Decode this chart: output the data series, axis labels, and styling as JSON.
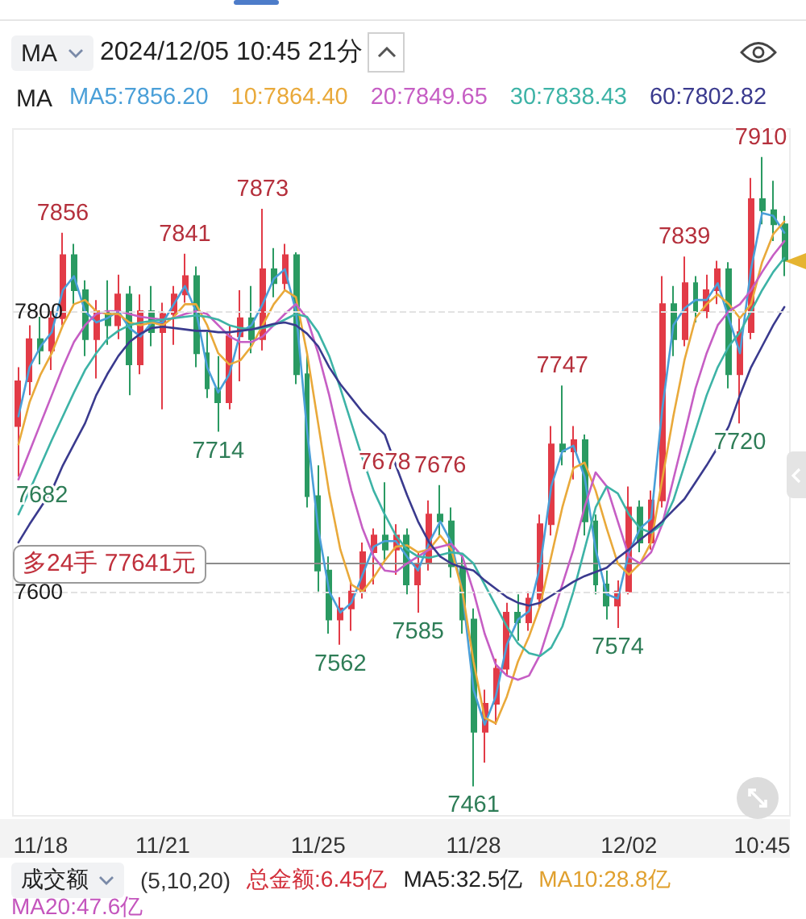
{
  "chart_data": {
    "type": "candlestick",
    "title": "2024/12/05 10:45 21分",
    "legend_title": "MA",
    "categories": [
      null,
      null,
      "11/18",
      null,
      null,
      null,
      null,
      null,
      null,
      null,
      null,
      null,
      null,
      "11/21",
      null,
      null,
      null,
      null,
      null,
      null,
      null,
      null,
      null,
      null,
      null,
      null,
      null,
      "11/25",
      null,
      null,
      null,
      null,
      null,
      null,
      null,
      null,
      null,
      null,
      null,
      null,
      null,
      "11/28",
      null,
      null,
      null,
      null,
      null,
      null,
      null,
      null,
      null,
      null,
      null,
      null,
      null,
      "12/02",
      null,
      null,
      null,
      null,
      null,
      null,
      null,
      null,
      null,
      null,
      null,
      "10:45",
      null,
      null
    ],
    "series": [
      {
        "type": "candlestick",
        "ohlc": [
          [
            7718,
            7760,
            7682,
            7750
          ],
          [
            7750,
            7790,
            7740,
            7780
          ],
          [
            7780,
            7796,
            7762,
            7772
          ],
          [
            7772,
            7800,
            7758,
            7795
          ],
          [
            7795,
            7856,
            7790,
            7840
          ],
          [
            7840,
            7848,
            7805,
            7815
          ],
          [
            7815,
            7822,
            7768,
            7780
          ],
          [
            7780,
            7808,
            7752,
            7800
          ],
          [
            7800,
            7822,
            7776,
            7790
          ],
          [
            7790,
            7826,
            7780,
            7812
          ],
          [
            7812,
            7818,
            7740,
            7762
          ],
          [
            7762,
            7812,
            7755,
            7800
          ],
          [
            7800,
            7818,
            7775,
            7785
          ],
          [
            7785,
            7806,
            7730,
            7798
          ],
          [
            7798,
            7818,
            7776,
            7812
          ],
          [
            7812,
            7841,
            7806,
            7825
          ],
          [
            7825,
            7832,
            7760,
            7770
          ],
          [
            7770,
            7785,
            7738,
            7745
          ],
          [
            7745,
            7768,
            7714,
            7735
          ],
          [
            7735,
            7790,
            7730,
            7782
          ],
          [
            7782,
            7815,
            7750,
            7795
          ],
          [
            7795,
            7818,
            7770,
            7780
          ],
          [
            7780,
            7873,
            7772,
            7830
          ],
          [
            7830,
            7845,
            7810,
            7820
          ],
          [
            7820,
            7848,
            7815,
            7840
          ],
          [
            7840,
            7842,
            7748,
            7755
          ],
          [
            7755,
            7770,
            7660,
            7668
          ],
          [
            7668,
            7690,
            7600,
            7615
          ],
          [
            7615,
            7625,
            7570,
            7580
          ],
          [
            7580,
            7596,
            7562,
            7588
          ],
          [
            7588,
            7608,
            7572,
            7600
          ],
          [
            7600,
            7635,
            7595,
            7628
          ],
          [
            7628,
            7645,
            7605,
            7640
          ],
          [
            7640,
            7678,
            7622,
            7630
          ],
          [
            7630,
            7648,
            7612,
            7640
          ],
          [
            7640,
            7645,
            7598,
            7605
          ],
          [
            7605,
            7628,
            7585,
            7620
          ],
          [
            7620,
            7665,
            7615,
            7655
          ],
          [
            7655,
            7676,
            7640,
            7650
          ],
          [
            7650,
            7660,
            7610,
            7618
          ],
          [
            7618,
            7625,
            7570,
            7580
          ],
          [
            7580,
            7588,
            7461,
            7500
          ],
          [
            7500,
            7530,
            7478,
            7520
          ],
          [
            7520,
            7552,
            7505,
            7545
          ],
          [
            7545,
            7592,
            7540,
            7585
          ],
          [
            7585,
            7598,
            7565,
            7578
          ],
          [
            7578,
            7600,
            7572,
            7595
          ],
          [
            7595,
            7655,
            7588,
            7648
          ],
          [
            7648,
            7718,
            7640,
            7705
          ],
          [
            7705,
            7747,
            7690,
            7700
          ],
          [
            7700,
            7718,
            7680,
            7708
          ],
          [
            7708,
            7712,
            7640,
            7650
          ],
          [
            7650,
            7655,
            7598,
            7605
          ],
          [
            7605,
            7615,
            7580,
            7590
          ],
          [
            7590,
            7608,
            7574,
            7600
          ],
          [
            7600,
            7675,
            7598,
            7660
          ],
          [
            7660,
            7665,
            7628,
            7635
          ],
          [
            7635,
            7672,
            7630,
            7665
          ],
          [
            7665,
            7825,
            7660,
            7805
          ],
          [
            7805,
            7818,
            7768,
            7780
          ],
          [
            7780,
            7839,
            7775,
            7820
          ],
          [
            7820,
            7825,
            7792,
            7800
          ],
          [
            7800,
            7826,
            7795,
            7815
          ],
          [
            7815,
            7836,
            7805,
            7830
          ],
          [
            7830,
            7835,
            7745,
            7755
          ],
          [
            7755,
            7795,
            7720,
            7785
          ],
          [
            7785,
            7895,
            7780,
            7880
          ],
          [
            7880,
            7910,
            7862,
            7872
          ],
          [
            7872,
            7893,
            7850,
            7862
          ],
          [
            7862,
            7868,
            7825,
            7836
          ]
        ],
        "colors": [
          "#e23b47",
          "#e23b47",
          "#2a9a62",
          "#e23b47",
          "#e23b47",
          "#2a9a62",
          "#2a9a62",
          "#e23b47",
          "#2a9a62",
          "#e23b47",
          "#2a9a62",
          "#e23b47",
          "#2a9a62",
          "#e23b47",
          "#e23b47",
          "#e23b47",
          "#2a9a62",
          "#2a9a62",
          "#2a9a62",
          "#e23b47",
          "#e23b47",
          "#2a9a62",
          "#e23b47",
          "#2a9a62",
          "#e23b47",
          "#2a9a62",
          "#2a9a62",
          "#2a9a62",
          "#2a9a62",
          "#e23b47",
          "#e23b47",
          "#e23b47",
          "#e23b47",
          "#2a9a62",
          "#e23b47",
          "#2a9a62",
          "#e23b47",
          "#e23b47",
          "#2a9a62",
          "#2a9a62",
          "#2a9a62",
          "#2a9a62",
          "#e23b47",
          "#e23b47",
          "#e23b47",
          "#2a9a62",
          "#e23b47",
          "#e23b47",
          "#e23b47",
          "#2a9a62",
          "#e23b47",
          "#2a9a62",
          "#2a9a62",
          "#2a9a62",
          "#e23b47",
          "#e23b47",
          "#2a9a62",
          "#e23b47",
          "#e23b47",
          "#2a9a62",
          "#e23b47",
          "#2a9a62",
          "#e23b47",
          "#e23b47",
          "#2a9a62",
          "#e23b47",
          "#e23b47",
          "#2a9a62",
          "#2a9a62",
          "#2a9a62"
        ]
      },
      {
        "type": "line",
        "name": "MA5:7856.20",
        "color": "#4a9fd8",
        "values": [
          7725,
          7760,
          7775,
          7785,
          7815,
          7825,
          7800,
          7792,
          7795,
          7800,
          7788,
          7782,
          7792,
          7792,
          7805,
          7818,
          7800,
          7760,
          7742,
          7755,
          7785,
          7790,
          7805,
          7823,
          7830,
          7800,
          7715,
          7645,
          7600,
          7585,
          7592,
          7612,
          7632,
          7636,
          7636,
          7625,
          7615,
          7635,
          7650,
          7635,
          7600,
          7530,
          7505,
          7525,
          7562,
          7580,
          7586,
          7618,
          7675,
          7700,
          7704,
          7682,
          7630,
          7598,
          7595,
          7628,
          7645,
          7652,
          7730,
          7790,
          7802,
          7808,
          7808,
          7820,
          7795,
          7770,
          7830,
          7870,
          7868,
          7856
        ]
      },
      {
        "type": "line",
        "name": "10:7864.40",
        "color": "#e9a93a",
        "values": [
          7705,
          7735,
          7755,
          7770,
          7790,
          7805,
          7808,
          7800,
          7798,
          7798,
          7792,
          7790,
          7792,
          7790,
          7796,
          7805,
          7805,
          7790,
          7770,
          7762,
          7765,
          7775,
          7790,
          7805,
          7815,
          7810,
          7770,
          7720,
          7670,
          7630,
          7605,
          7600,
          7610,
          7622,
          7632,
          7633,
          7628,
          7630,
          7640,
          7630,
          7600,
          7550,
          7510,
          7506,
          7525,
          7550,
          7568,
          7590,
          7625,
          7660,
          7688,
          7692,
          7672,
          7645,
          7620,
          7612,
          7620,
          7635,
          7680,
          7725,
          7765,
          7795,
          7805,
          7812,
          7805,
          7795,
          7805,
          7835,
          7855,
          7864
        ]
      },
      {
        "type": "line",
        "name": "20:7849.65",
        "color": "#c65ec4",
        "values": [
          7680,
          7700,
          7720,
          7740,
          7760,
          7778,
          7790,
          7798,
          7800,
          7800,
          7798,
          7796,
          7795,
          7794,
          7795,
          7798,
          7800,
          7798,
          7790,
          7782,
          7778,
          7778,
          7782,
          7790,
          7798,
          7805,
          7795,
          7770,
          7740,
          7705,
          7672,
          7645,
          7625,
          7615,
          7614,
          7620,
          7625,
          7630,
          7632,
          7634,
          7625,
          7600,
          7570,
          7548,
          7540,
          7537,
          7540,
          7555,
          7580,
          7605,
          7630,
          7660,
          7685,
          7675,
          7650,
          7625,
          7620,
          7628,
          7648,
          7680,
          7712,
          7745,
          7770,
          7790,
          7800,
          7805,
          7815,
          7828,
          7840,
          7850
        ]
      },
      {
        "type": "line",
        "name": "30:7838.43",
        "color": "#3db3a6",
        "values": [
          7655,
          7672,
          7690,
          7708,
          7725,
          7742,
          7758,
          7770,
          7780,
          7786,
          7790,
          7792,
          7793,
          7794,
          7795,
          7796,
          7797,
          7796,
          7794,
          7790,
          7788,
          7787,
          7788,
          7790,
          7794,
          7798,
          7796,
          7785,
          7768,
          7745,
          7720,
          7695,
          7672,
          7655,
          7640,
          7630,
          7625,
          7624,
          7626,
          7628,
          7627,
          7620,
          7605,
          7590,
          7575,
          7563,
          7556,
          7554,
          7560,
          7575,
          7600,
          7630,
          7660,
          7675,
          7670,
          7655,
          7645,
          7642,
          7648,
          7665,
          7690,
          7715,
          7740,
          7760,
          7775,
          7785,
          7800,
          7815,
          7828,
          7838
        ]
      },
      {
        "type": "line",
        "name": "60:7802.82",
        "color": "#3a3a8e",
        "values": [
          7635,
          7648,
          7660,
          7672,
          7690,
          7705,
          7720,
          7740,
          7755,
          7768,
          7778,
          7784,
          7788,
          7789,
          7788,
          7787,
          7786,
          7786,
          7785,
          7785,
          7786,
          7787,
          7789,
          7791,
          7792,
          7790,
          7784,
          7775,
          7760,
          7748,
          7738,
          7728,
          7720,
          7712,
          7690,
          7669,
          7650,
          7635,
          7625,
          7620,
          7617,
          7615,
          7608,
          7602,
          7596,
          7592,
          7590,
          7592,
          7597,
          7602,
          7607,
          7611,
          7614,
          7617,
          7624,
          7630,
          7637,
          7643,
          7650,
          7658,
          7666,
          7678,
          7690,
          7703,
          7718,
          7740,
          7760,
          7775,
          7790,
          7803
        ]
      }
    ],
    "ylim": [
      7440,
      7930
    ],
    "yticks": [
      7600,
      7800
    ],
    "grid": "y",
    "legend": "top left",
    "marker": "none",
    "line_style": "solid",
    "ref_lines": [
      {
        "axis": "y",
        "value": 7620,
        "label": "多24手 77641元",
        "color": "#8c8c8c"
      }
    ],
    "annotations": [
      "MA",
      "成交额",
      "(5,10,20)",
      "总金额:6.45亿",
      "MA5:32.5亿",
      "MA10:28.8亿",
      "MA20:47.6亿",
      {
        "text": "7856",
        "y": 7856
      },
      {
        "text": "7841",
        "y": 7841
      },
      {
        "text": "7873",
        "y": 7873
      },
      {
        "text": "7714",
        "y": 7714
      },
      {
        "text": "7682",
        "y": 7682
      },
      {
        "text": "7678",
        "y": 7678
      },
      {
        "text": "7676",
        "y": 7676
      },
      {
        "text": "7562",
        "y": 7562
      },
      {
        "text": "7585",
        "y": 7585
      },
      {
        "text": "7461",
        "y": 7461
      },
      {
        "text": "7747",
        "y": 7747
      },
      {
        "text": "7574",
        "y": 7574
      },
      {
        "text": "7839",
        "y": 7839
      },
      {
        "text": "7910",
        "y": 7910
      },
      {
        "text": "7720",
        "y": 7720
      }
    ]
  }
}
